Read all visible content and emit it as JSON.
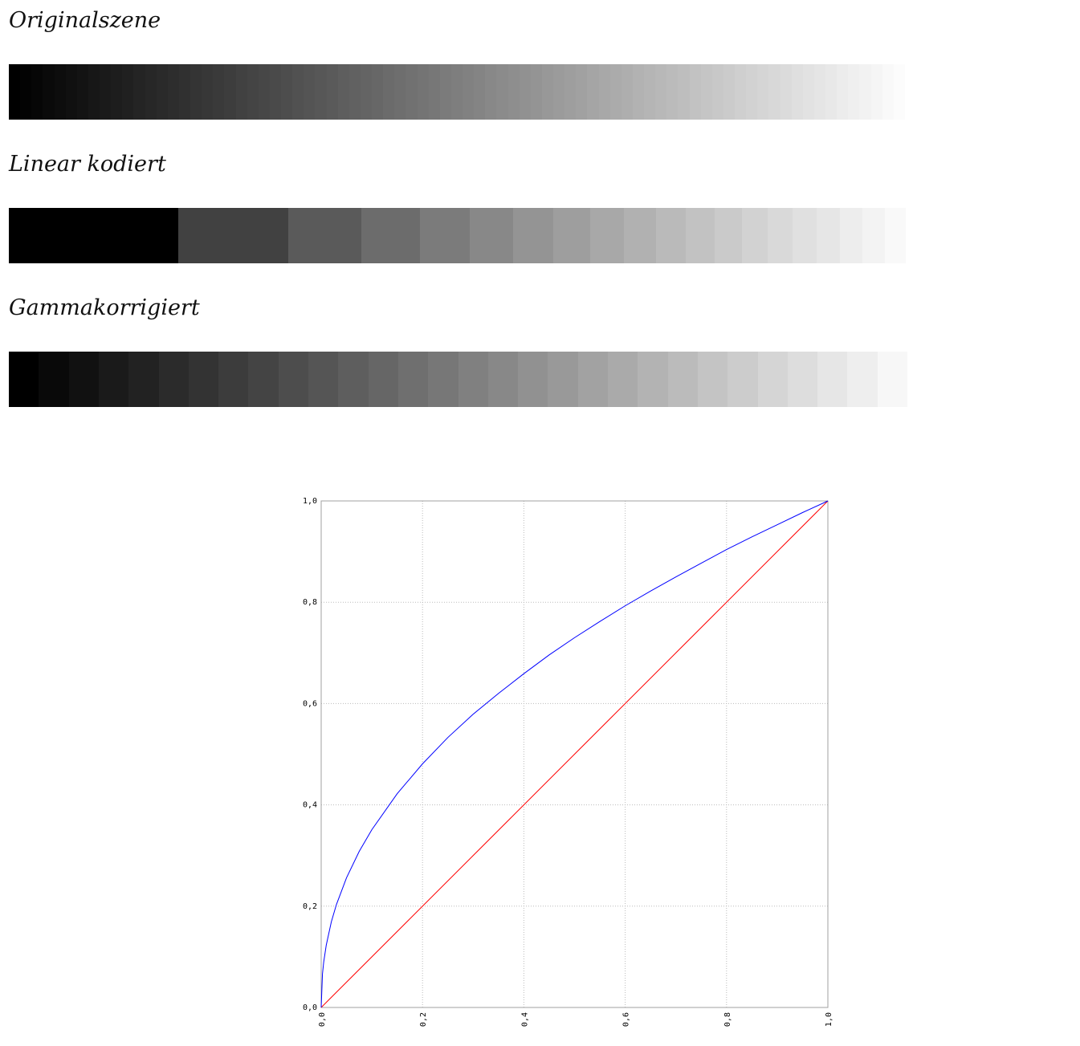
{
  "headings": {
    "original": "Originalszene",
    "linear": "Linear kodiert",
    "gamma": "Gammakorrigiert"
  },
  "strips": {
    "original": {
      "kind": "smooth",
      "levels": 80,
      "start": "#000000",
      "end": "#ffffff"
    },
    "linear": {
      "kind": "linear-coded",
      "levels": 20,
      "gamma": 2.2
    },
    "gamma": {
      "kind": "gamma-coded",
      "levels": 30
    }
  },
  "colors": {
    "curve": "#0000ff",
    "diagonal": "#ff0000",
    "grid": "#bbbbbb",
    "frame": "#a0a0a0",
    "background": "#ffffff"
  },
  "chart_data": {
    "type": "line",
    "title": "",
    "xlabel": "",
    "ylabel": "",
    "xlim": [
      0,
      1
    ],
    "ylim": [
      0,
      1
    ],
    "grid": true,
    "xticks": [
      0,
      0.2,
      0.4,
      0.6,
      0.8,
      1.0
    ],
    "yticks": [
      0,
      0.2,
      0.4,
      0.6,
      0.8,
      1.0
    ],
    "xtick_labels": [
      "0,0",
      "0,2",
      "0,4",
      "0,6",
      "0,8",
      "1,0"
    ],
    "ytick_labels": [
      "0,0",
      "0,2",
      "0,4",
      "0,6",
      "0,8",
      "1,0"
    ],
    "series": [
      {
        "color": "#0000ff",
        "x": [
          0,
          0.0025,
          0.005,
          0.01,
          0.02,
          0.03,
          0.05,
          0.075,
          0.1,
          0.15,
          0.2,
          0.25,
          0.3,
          0.35,
          0.4,
          0.45,
          0.5,
          0.55,
          0.6,
          0.65,
          0.7,
          0.75,
          0.8,
          0.85,
          0.9,
          0.95,
          1.0
        ],
        "y": [
          0,
          0.066,
          0.09,
          0.123,
          0.169,
          0.203,
          0.256,
          0.308,
          0.351,
          0.422,
          0.481,
          0.533,
          0.579,
          0.62,
          0.659,
          0.696,
          0.73,
          0.762,
          0.793,
          0.822,
          0.85,
          0.877,
          0.904,
          0.929,
          0.953,
          0.977,
          1.0
        ]
      },
      {
        "color": "#ff0000",
        "x": [
          0,
          1
        ],
        "y": [
          0,
          1
        ]
      }
    ]
  }
}
